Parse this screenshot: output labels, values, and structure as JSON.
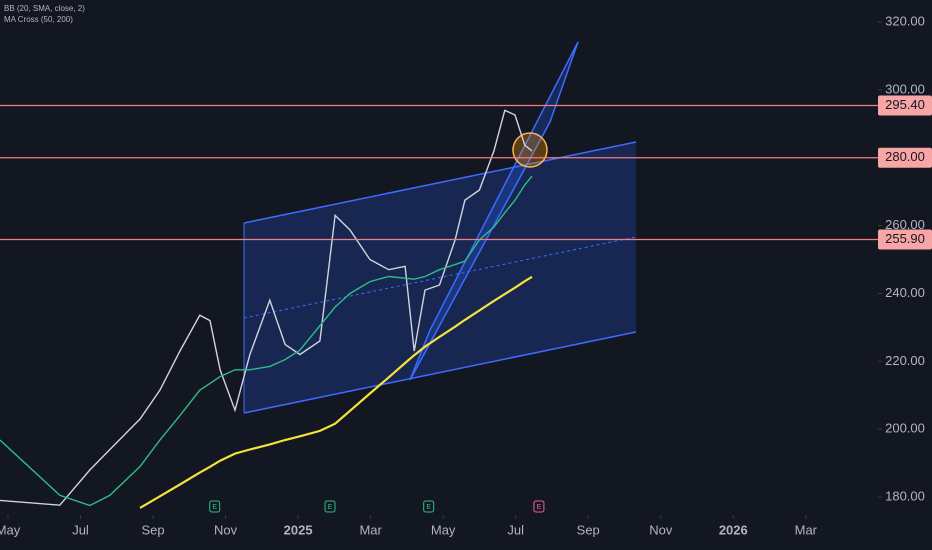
{
  "chart_data": {
    "type": "line",
    "indicators": [
      "BB (20, SMA, close, 2)",
      "MA Cross (50, 200)"
    ],
    "x": [
      -0.22,
      1.43,
      2.26,
      2.81,
      3.64,
      4.19,
      4.74,
      5.29,
      5.57,
      5.85,
      6.26,
      6.67,
      7.22,
      7.64,
      8.05,
      8.6,
      9.02,
      9.43,
      9.98,
      10.5,
      10.95,
      11.2,
      11.5,
      11.9,
      12.33,
      12.6,
      13.0,
      13.4,
      13.7,
      13.98,
      14.25,
      14.45
    ],
    "series": [
      {
        "color": "#d1d4dc",
        "values": [
          179,
          177.6,
          188,
          194,
          203,
          211.5,
          223,
          233.6,
          232,
          217.5,
          205.6,
          222,
          238,
          225,
          222,
          226,
          263,
          258.7,
          250,
          247,
          248,
          223,
          241,
          242.5,
          255.8,
          267.5,
          270.5,
          282,
          294,
          292.6,
          283.7,
          282
        ]
      },
      {
        "color": "#2ebd85",
        "values": [
          196.8,
          180.5,
          177.5,
          180.5,
          189,
          196.8,
          204,
          211.5,
          213.5,
          215.5,
          217.5,
          217.5,
          218.5,
          220.5,
          223.3,
          230.5,
          236,
          240,
          243.5,
          245,
          244.5,
          244.2,
          245,
          247,
          248.5,
          249.5,
          255.8,
          259.6,
          263.8,
          267.5,
          272,
          274.6
        ]
      },
      {
        "color": "#f5e23a",
        "values": [
          null,
          null,
          null,
          null,
          176.8,
          180.2,
          183.7,
          187.2,
          188.9,
          190.7,
          192.8,
          194.0,
          195.5,
          196.8,
          197.9,
          199.5,
          201.6,
          205.4,
          210.5,
          215.3,
          219.5,
          221.8,
          224.3,
          227.2,
          230.2,
          232.2,
          235.0,
          237.8,
          239.8,
          241.7,
          243.6,
          244.9
        ]
      }
    ],
    "levels": {
      "values": [
        295.4,
        280,
        255.9
      ],
      "value_labels": [
        "295.40",
        "280.00",
        "255.90"
      ],
      "color": "#f77c80"
    },
    "events": {
      "x": [
        5.7,
        8.88,
        11.6,
        14.64
      ],
      "labels": [
        "E",
        "E",
        "E",
        "E"
      ],
      "colors": [
        "#2ebd85",
        "#2ebd85",
        "#2ebd85",
        "#f06292"
      ]
    },
    "xlim": [
      -0.22,
      23.99
    ],
    "xticks": [
      {
        "value": 0,
        "label": "May"
      },
      {
        "value": 2,
        "label": "Jul"
      },
      {
        "value": 4,
        "label": "Sep"
      },
      {
        "value": 6,
        "label": "Nov"
      },
      {
        "value": 8,
        "label": "2025"
      },
      {
        "value": 10,
        "label": "Mar"
      },
      {
        "value": 12,
        "label": "May"
      },
      {
        "value": 14,
        "label": "Jul"
      },
      {
        "value": 16,
        "label": "Sep"
      },
      {
        "value": 18,
        "label": "Nov"
      },
      {
        "value": 20,
        "label": "2026"
      },
      {
        "value": 22,
        "label": "Mar"
      }
    ],
    "ylim": [
      174.7,
      326.5
    ],
    "yticks": [
      {
        "value": 180,
        "label": "180.00"
      },
      {
        "value": 200,
        "label": "200.00"
      },
      {
        "value": 220,
        "label": "220.00"
      },
      {
        "value": 240,
        "label": "240.00"
      },
      {
        "value": 260,
        "label": "260.00"
      },
      {
        "value": 280,
        "label": "280.00"
      },
      {
        "value": 300,
        "label": "300.00"
      },
      {
        "value": 320,
        "label": "320.00"
      }
    ],
    "grid": false
  }
}
